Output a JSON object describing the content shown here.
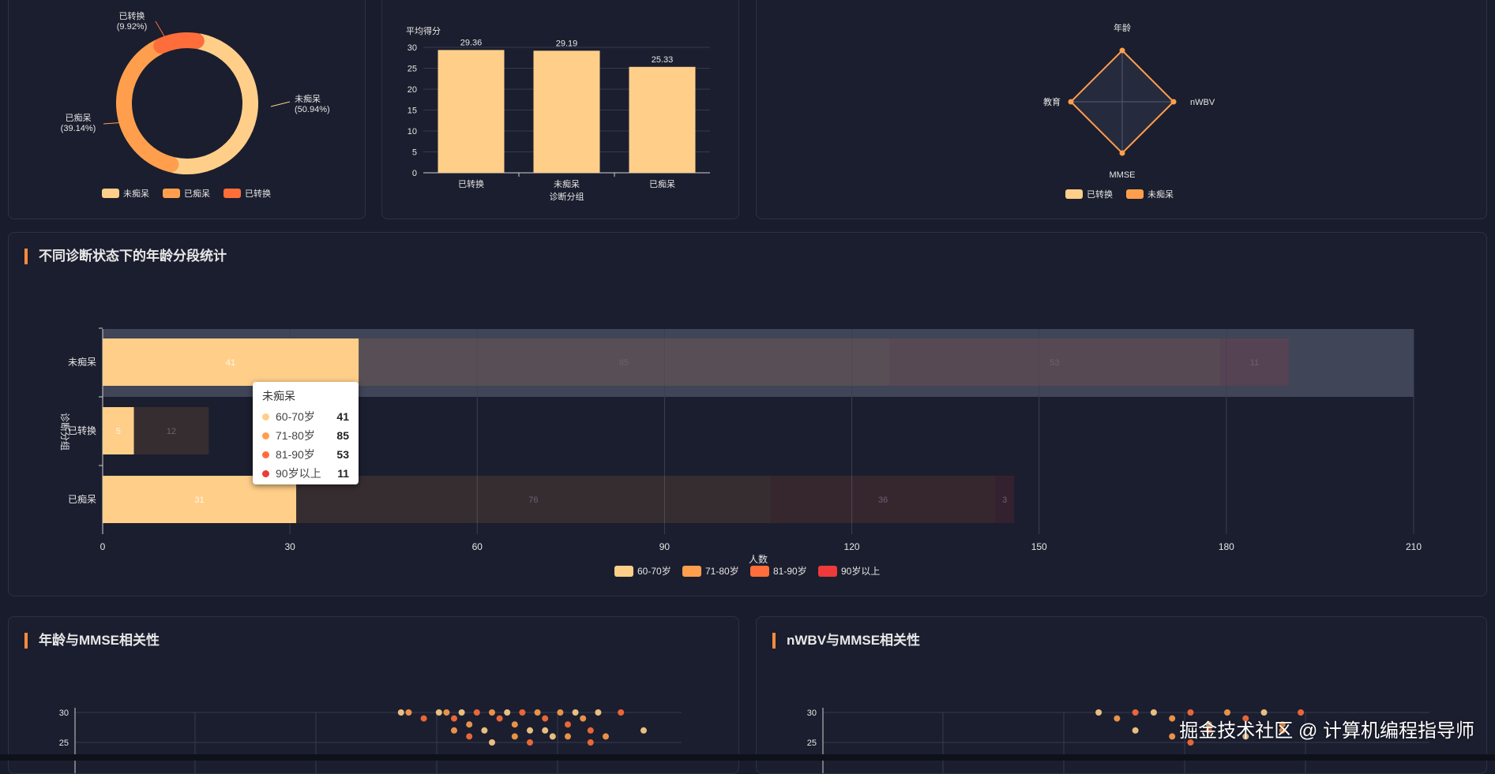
{
  "colors": {
    "c1": "#ffcf8a",
    "c2": "#ff9f4d",
    "c3": "#ff6e3a",
    "c4": "#ee3a3a",
    "accent": "#ff8a3d"
  },
  "donut": {
    "chart_data": {
      "type": "pie",
      "slices": [
        {
          "name": "未痴呆",
          "value": 50.94,
          "label": "未痴呆",
          "pct": "(50.94%)"
        },
        {
          "name": "已痴呆",
          "value": 39.14,
          "label": "已痴呆",
          "pct": "(39.14%)"
        },
        {
          "name": "已转换",
          "value": 9.92,
          "label": "已转换",
          "pct": "(9.92%)"
        }
      ],
      "legend": [
        "未痴呆",
        "已痴呆",
        "已转换"
      ],
      "legend_position": "bottom"
    }
  },
  "bar": {
    "chart_data": {
      "type": "bar",
      "categories": [
        "已转换",
        "未痴呆",
        "已痴呆"
      ],
      "values": [
        29.36,
        29.19,
        25.33
      ],
      "value_labels": [
        "29.36",
        "29.19",
        "25.33"
      ],
      "ylabel": "平均得分",
      "xlabel": "诊断分组",
      "ylim": [
        0,
        30
      ],
      "yticks": [
        "0",
        "5",
        "10",
        "15",
        "20",
        "25",
        "30"
      ]
    }
  },
  "radar": {
    "chart_data": {
      "type": "radar",
      "axes": [
        "年龄",
        "nWBV",
        "MMSE",
        "教育"
      ],
      "legend": [
        "已转换",
        "未痴呆"
      ],
      "legend_position": "bottom"
    }
  },
  "age_stack": {
    "title": "不同诊断状态下的年龄分段统计",
    "chart_data": {
      "type": "bar",
      "orientation": "horizontal",
      "stacked": true,
      "categories": [
        "未痴呆",
        "已转换",
        "已痴呆"
      ],
      "series": [
        {
          "name": "60-70岁",
          "values": [
            41,
            5,
            31
          ],
          "labels": [
            "41",
            "5",
            "31"
          ]
        },
        {
          "name": "71-80岁",
          "values": [
            85,
            12,
            76
          ],
          "labels": [
            "85",
            "12",
            "76"
          ]
        },
        {
          "name": "81-90岁",
          "values": [
            53,
            0,
            36
          ],
          "labels": [
            "53",
            "",
            "36"
          ]
        },
        {
          "name": "90岁以上",
          "values": [
            11,
            0,
            3
          ],
          "labels": [
            "11",
            "",
            "3"
          ]
        }
      ],
      "xlabel": "人数",
      "ylabel": "诊断分组",
      "xlim": [
        0,
        210
      ],
      "xticks": [
        "0",
        "30",
        "60",
        "90",
        "120",
        "150",
        "180",
        "210"
      ],
      "legend_position": "bottom"
    },
    "tooltip": {
      "title": "未痴呆",
      "rows": [
        {
          "name": "60-70岁",
          "value": "41"
        },
        {
          "name": "71-80岁",
          "value": "85"
        },
        {
          "name": "81-90岁",
          "value": "53"
        },
        {
          "name": "90岁以上",
          "value": "11"
        }
      ]
    }
  },
  "scatter_age": {
    "title": "年龄与MMSE相关性",
    "chart_data": {
      "type": "scatter",
      "yticks": [
        "30",
        "25"
      ],
      "points": [
        [
          63,
          30
        ],
        [
          64,
          30
        ],
        [
          66,
          29
        ],
        [
          68,
          30
        ],
        [
          69,
          30
        ],
        [
          70,
          29
        ],
        [
          71,
          30
        ],
        [
          72,
          28
        ],
        [
          73,
          30
        ],
        [
          74,
          27
        ],
        [
          75,
          30
        ],
        [
          76,
          29
        ],
        [
          77,
          30
        ],
        [
          78,
          28
        ],
        [
          79,
          30
        ],
        [
          80,
          27
        ],
        [
          81,
          30
        ],
        [
          82,
          29
        ],
        [
          83,
          26
        ],
        [
          84,
          30
        ],
        [
          85,
          28
        ],
        [
          86,
          30
        ],
        [
          87,
          29
        ],
        [
          88,
          27
        ],
        [
          89,
          30
        ],
        [
          90,
          26
        ],
        [
          92,
          30
        ],
        [
          95,
          27
        ],
        [
          70,
          27
        ],
        [
          72,
          26
        ],
        [
          75,
          25
        ],
        [
          78,
          26
        ],
        [
          80,
          25
        ],
        [
          82,
          27
        ],
        [
          85,
          26
        ],
        [
          88,
          25
        ]
      ]
    }
  },
  "scatter_nwbv": {
    "title": "nWBV与MMSE相关性",
    "chart_data": {
      "type": "scatter",
      "yticks": [
        "30",
        "25"
      ],
      "points": [
        [
          0.7,
          30
        ],
        [
          0.71,
          29
        ],
        [
          0.72,
          30
        ],
        [
          0.73,
          30
        ],
        [
          0.74,
          29
        ],
        [
          0.75,
          30
        ],
        [
          0.76,
          28
        ],
        [
          0.77,
          30
        ],
        [
          0.78,
          29
        ],
        [
          0.79,
          30
        ],
        [
          0.8,
          28
        ],
        [
          0.81,
          30
        ],
        [
          0.72,
          27
        ],
        [
          0.74,
          26
        ],
        [
          0.76,
          27
        ],
        [
          0.78,
          26
        ],
        [
          0.8,
          27
        ],
        [
          0.75,
          25
        ]
      ]
    }
  },
  "watermark": "掘金技术社区 @ 计算机编程指导师"
}
